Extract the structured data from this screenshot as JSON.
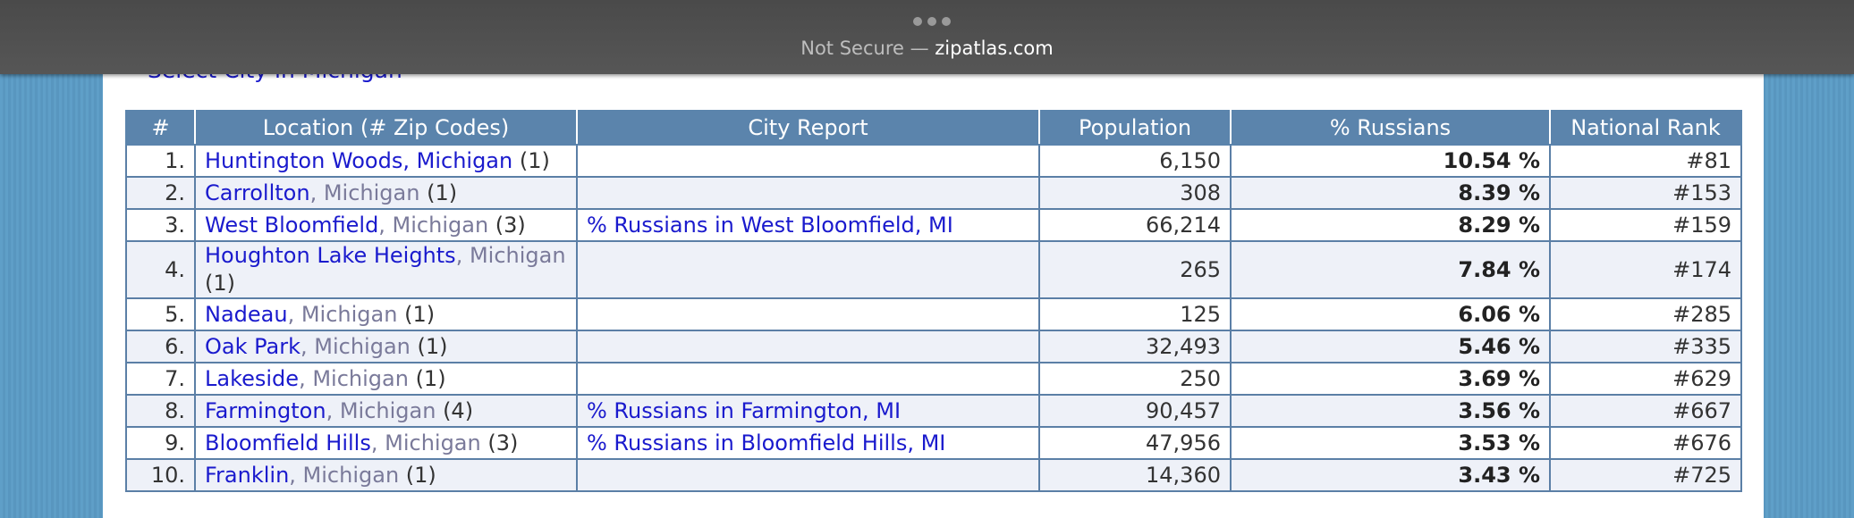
{
  "browser": {
    "security": "Not Secure —",
    "host": "zipatlas.com"
  },
  "page": {
    "select_link": "Select City in Michigan"
  },
  "table": {
    "columns": [
      "#",
      "Location (# Zip Codes)",
      "City Report",
      "Population",
      "% Russians",
      "National Rank"
    ],
    "rows": [
      {
        "rank": "1.",
        "city": "Huntington Woods",
        "state": ", Michigan",
        "state_link": true,
        "zips": "(1)",
        "report": null,
        "population": "6,150",
        "pct": "10.54 %",
        "national": "#81"
      },
      {
        "rank": "2.",
        "city": "Carrollton",
        "state": ", Michigan",
        "zips": "(1)",
        "report": null,
        "population": "308",
        "pct": "8.39 %",
        "national": "#153"
      },
      {
        "rank": "3.",
        "city": "West Bloomfield",
        "state": ", Michigan",
        "zips": "(3)",
        "report": "% Russians in West Bloomfield, MI",
        "population": "66,214",
        "pct": "8.29 %",
        "national": "#159"
      },
      {
        "rank": "4.",
        "city": "Houghton Lake Heights",
        "state": ", Michigan",
        "zips": "(1)",
        "report": null,
        "population": "265",
        "pct": "7.84 %",
        "national": "#174"
      },
      {
        "rank": "5.",
        "city": "Nadeau",
        "state": ", Michigan",
        "zips": "(1)",
        "report": null,
        "population": "125",
        "pct": "6.06 %",
        "national": "#285"
      },
      {
        "rank": "6.",
        "city": "Oak Park",
        "state": ", Michigan",
        "zips": "(1)",
        "report": null,
        "population": "32,493",
        "pct": "5.46 %",
        "national": "#335"
      },
      {
        "rank": "7.",
        "city": "Lakeside",
        "state": ", Michigan",
        "zips": "(1)",
        "report": null,
        "population": "250",
        "pct": "3.69 %",
        "national": "#629"
      },
      {
        "rank": "8.",
        "city": "Farmington",
        "state": ", Michigan",
        "zips": "(4)",
        "report": "% Russians in Farmington, MI",
        "population": "90,457",
        "pct": "3.56 %",
        "national": "#667"
      },
      {
        "rank": "9.",
        "city": "Bloomfield Hills",
        "state": ", Michigan",
        "zips": "(3)",
        "report": "% Russians in Bloomfield Hills, MI",
        "population": "47,956",
        "pct": "3.53 %",
        "national": "#676"
      },
      {
        "rank": "10.",
        "city": "Franklin",
        "state": ", Michigan",
        "zips": "(1)",
        "report": null,
        "population": "14,360",
        "pct": "3.43 %",
        "national": "#725"
      }
    ]
  }
}
